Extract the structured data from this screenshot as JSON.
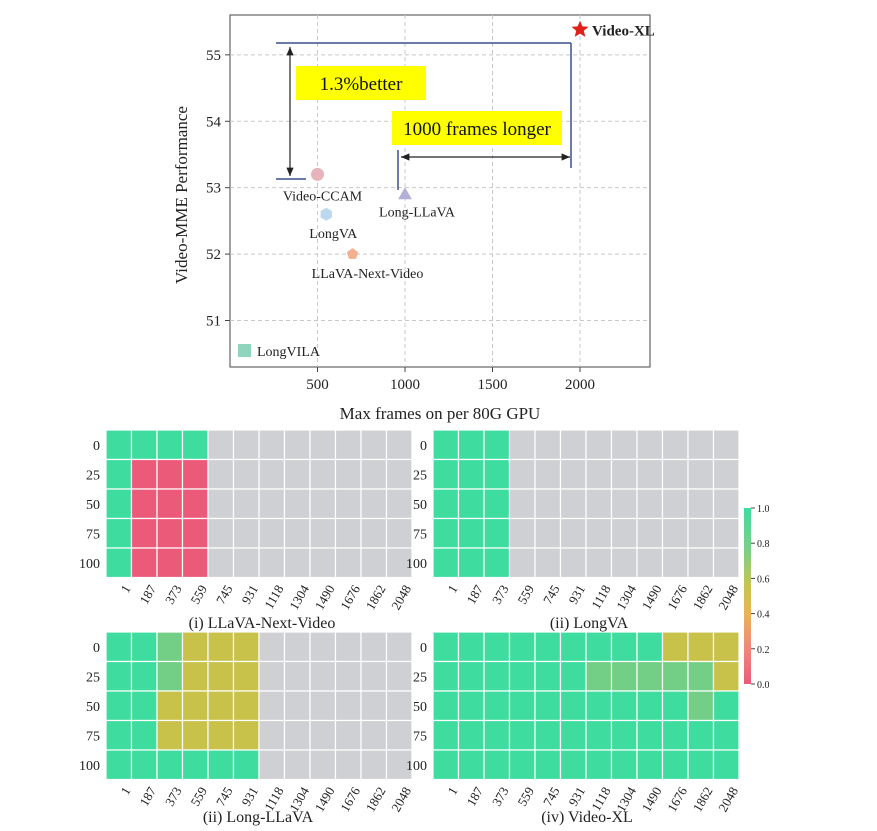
{
  "chart_data": [
    {
      "type": "scatter",
      "xlabel": "Max frames on per 80G GPU",
      "ylabel": "Video-MME Performance",
      "xlim": [
        0,
        2400
      ],
      "ylim": [
        50.3,
        55.6
      ],
      "xticks": [
        500,
        1000,
        1500,
        2000
      ],
      "yticks": [
        51,
        52,
        53,
        54,
        55
      ],
      "grid": true,
      "legend": {
        "position": "bottom-left",
        "entries": [
          "LongVILA"
        ],
        "colors": [
          "#8fd5bd"
        ]
      },
      "points": [
        {
          "label": "Video-XL",
          "x": 2000,
          "y": 55.38,
          "marker": "star",
          "color": "#e0201b"
        },
        {
          "label": "Video-CCAM",
          "x": 500,
          "y": 53.2,
          "marker": "circle",
          "color": "#e8b4bc"
        },
        {
          "label": "Long-LLaVA",
          "x": 1000,
          "y": 52.9,
          "marker": "triangle",
          "color": "#b3b0d6"
        },
        {
          "label": "LongVA",
          "x": 550,
          "y": 52.6,
          "marker": "hexagon",
          "color": "#bcd8ee"
        },
        {
          "label": "LLaVA-Next-Video",
          "x": 700,
          "y": 52.0,
          "marker": "pentagon",
          "color": "#f2b08e"
        }
      ],
      "annotations": [
        {
          "text": "1.3%better",
          "bg": "#ffff00"
        },
        {
          "text": "1000 frames longer",
          "bg": "#ffff00"
        }
      ]
    },
    {
      "type": "heatmap",
      "title": "(i) LLaVA-Next-Video",
      "x": [
        "1",
        "187",
        "373",
        "559",
        "745",
        "931",
        "1118",
        "1304",
        "1490",
        "1676",
        "1862",
        "2048"
      ],
      "y": [
        "0",
        "25",
        "50",
        "75",
        "100"
      ],
      "values": [
        [
          1,
          1,
          1,
          1,
          null,
          null,
          null,
          null,
          null,
          null,
          null,
          null
        ],
        [
          1,
          0,
          0,
          0,
          null,
          null,
          null,
          null,
          null,
          null,
          null,
          null
        ],
        [
          1,
          0,
          0,
          0,
          null,
          null,
          null,
          null,
          null,
          null,
          null,
          null
        ],
        [
          1,
          0,
          0,
          0,
          null,
          null,
          null,
          null,
          null,
          null,
          null,
          null
        ],
        [
          1,
          0,
          0,
          0,
          null,
          null,
          null,
          null,
          null,
          null,
          null,
          null
        ]
      ]
    },
    {
      "type": "heatmap",
      "title": "(ii) LongVA",
      "x": [
        "1",
        "187",
        "373",
        "559",
        "745",
        "931",
        "1118",
        "1304",
        "1490",
        "1676",
        "1862",
        "2048"
      ],
      "y": [
        "0",
        "25",
        "50",
        "75",
        "100"
      ],
      "values": [
        [
          1,
          1,
          1,
          null,
          null,
          null,
          null,
          null,
          null,
          null,
          null,
          null
        ],
        [
          1,
          1,
          1,
          null,
          null,
          null,
          null,
          null,
          null,
          null,
          null,
          null
        ],
        [
          1,
          1,
          1,
          null,
          null,
          null,
          null,
          null,
          null,
          null,
          null,
          null
        ],
        [
          1,
          1,
          1,
          null,
          null,
          null,
          null,
          null,
          null,
          null,
          null,
          null
        ],
        [
          1,
          1,
          1,
          null,
          null,
          null,
          null,
          null,
          null,
          null,
          null,
          null
        ]
      ]
    },
    {
      "type": "heatmap",
      "title": "(ii) Long-LLaVA",
      "x": [
        "1",
        "187",
        "373",
        "559",
        "745",
        "931",
        "1118",
        "1304",
        "1490",
        "1676",
        "1862",
        "2048"
      ],
      "y": [
        "0",
        "25",
        "50",
        "75",
        "100"
      ],
      "values": [
        [
          1,
          1,
          0.75,
          0.6,
          0.6,
          0.6,
          null,
          null,
          null,
          null,
          null,
          null
        ],
        [
          1,
          1,
          0.75,
          0.6,
          0.6,
          0.6,
          null,
          null,
          null,
          null,
          null,
          null
        ],
        [
          1,
          1,
          0.6,
          0.6,
          0.6,
          0.6,
          null,
          null,
          null,
          null,
          null,
          null
        ],
        [
          1,
          1,
          0.6,
          0.6,
          0.6,
          0.6,
          null,
          null,
          null,
          null,
          null,
          null
        ],
        [
          1,
          1,
          1,
          1,
          1,
          1,
          null,
          null,
          null,
          null,
          null,
          null
        ]
      ]
    },
    {
      "type": "heatmap",
      "title": "(iv) Video-XL",
      "x": [
        "1",
        "187",
        "373",
        "559",
        "745",
        "931",
        "1118",
        "1304",
        "1490",
        "1676",
        "1862",
        "2048"
      ],
      "y": [
        "0",
        "25",
        "50",
        "75",
        "100"
      ],
      "values": [
        [
          1,
          1,
          1,
          1,
          1,
          1,
          1,
          1,
          1,
          0.6,
          0.6,
          0.6
        ],
        [
          1,
          1,
          1,
          1,
          1,
          1,
          0.75,
          0.75,
          0.75,
          0.75,
          0.75,
          0.6
        ],
        [
          1,
          1,
          1,
          1,
          1,
          1,
          1,
          1,
          1,
          1,
          0.75,
          1
        ],
        [
          1,
          1,
          1,
          1,
          1,
          1,
          1,
          1,
          1,
          1,
          1,
          1
        ],
        [
          1,
          1,
          1,
          1,
          1,
          1,
          1,
          1,
          1,
          1,
          1,
          1
        ]
      ]
    }
  ],
  "colorbar": {
    "ticks": [
      "1.0",
      "0.8",
      "0.6",
      "0.4",
      "0.2",
      "0.0"
    ],
    "colors": [
      "#3fdca0",
      "#74cf86",
      "#c8c24e",
      "#e4b85a",
      "#ee7a7a",
      "#ee5a7a"
    ]
  },
  "colors": {
    "high": "#3fdca0",
    "mid": "#74cf86",
    "yellow": "#c9c24a",
    "low": "#ec5a7a",
    "missing": "#cfd0d3"
  }
}
